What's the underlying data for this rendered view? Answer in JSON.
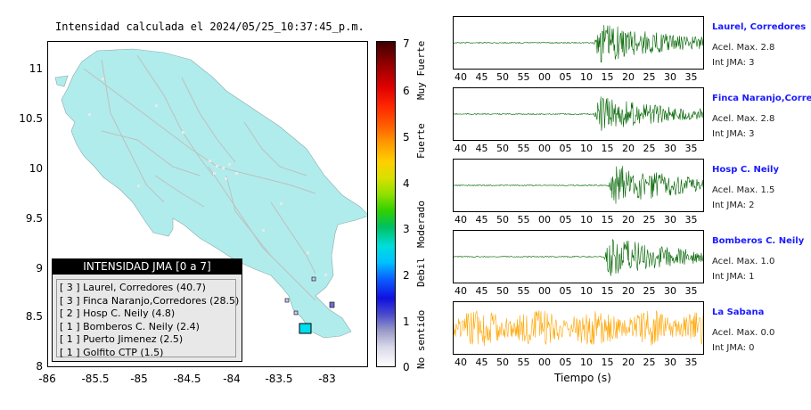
{
  "map": {
    "title": "Intensidad calculada el 2024/05/25_10:37:45_p.m.",
    "y_ticks": [
      "11",
      "10.5",
      "10",
      "9.5",
      "9",
      "8.5",
      "8"
    ],
    "x_ticks": [
      "-86",
      "-85.5",
      "-85",
      "-84.5",
      "-84",
      "-83.5",
      "-83"
    ],
    "land_color": "#b0ecec",
    "legend": {
      "title": "INTENSIDAD JMA [0 a 7]",
      "items": [
        "[ 3 ]  Laurel, Corredores (40.7)",
        "[ 3 ]  Finca Naranjo,Corredores (28.5)",
        "[ 2 ]  Hosp C. Neily (4.8)",
        "[ 1 ]  Bomberos C. Neily (2.4)",
        "[ 1 ]  Puerto Jimenez (2.5)",
        "[ 1 ]  Golfito CTP (1.5)"
      ]
    }
  },
  "colorbar": {
    "numbers": [
      "7",
      "6",
      "5",
      "4",
      "3",
      "2",
      "1",
      "0"
    ],
    "labels": [
      "Muy Fuerte",
      "Fuerte",
      "Moderado",
      "Debil",
      "No sentido"
    ]
  },
  "stations": [
    {
      "name": "Laurel, Corredores",
      "accel": "Acel. Max. 2.8",
      "jma": "Int JMA: 3",
      "color": "#006400",
      "onset": 0.56,
      "amp": 0.85
    },
    {
      "name": "Finca Naranjo,Corredores",
      "accel": "Acel. Max. 2.8",
      "jma": "Int JMA: 3",
      "color": "#006400",
      "onset": 0.56,
      "amp": 0.75
    },
    {
      "name": "Hosp C. Neily",
      "accel": "Acel. Max. 1.5",
      "jma": "Int JMA: 2",
      "color": "#006400",
      "onset": 0.62,
      "amp": 0.9
    },
    {
      "name": "Bomberos C. Neily",
      "accel": "Acel. Max. 1.0",
      "jma": "Int JMA: 1",
      "color": "#006400",
      "onset": 0.6,
      "amp": 0.85
    },
    {
      "name": "La Sabana",
      "accel": "Acel. Max. 0.0",
      "jma": "Int JMA: 0",
      "color": "#ffa500",
      "onset": 0.0,
      "amp": 0.7
    }
  ],
  "time_ticks": [
    "40",
    "45",
    "50",
    "55",
    "00",
    "05",
    "10",
    "15",
    "20",
    "25",
    "30",
    "35"
  ],
  "time_label": "Tiempo (s)"
}
